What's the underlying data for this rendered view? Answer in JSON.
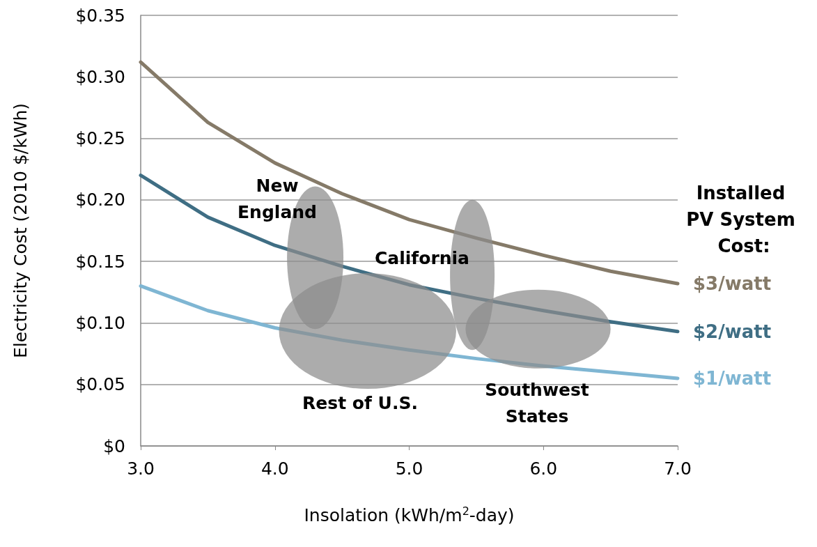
{
  "chart_data": {
    "type": "line",
    "ylabel": "Electricity Cost (2010 $/kWh)",
    "xlabel": "Insolation (kWh/m$^{2}$-day)",
    "legend_title": "Installed PV System Cost:",
    "x": [
      3.0,
      3.5,
      4.0,
      4.5,
      5.0,
      5.5,
      6.0,
      6.5,
      7.0
    ],
    "series": [
      {
        "name": "$3/watt",
        "color": "#857a68",
        "values": [
          0.312,
          0.263,
          0.23,
          0.205,
          0.184,
          0.169,
          0.155,
          0.142,
          0.132
        ]
      },
      {
        "name": "$2/watt",
        "color": "#3f6e84",
        "values": [
          0.22,
          0.186,
          0.163,
          0.146,
          0.131,
          0.12,
          0.11,
          0.101,
          0.093
        ]
      },
      {
        "name": "$1/watt",
        "color": "#7fb6d3",
        "values": [
          0.13,
          0.11,
          0.096,
          0.086,
          0.078,
          0.071,
          0.065,
          0.06,
          0.055
        ]
      }
    ],
    "xlim": [
      3,
      7
    ],
    "xticks": [
      {
        "value": 3,
        "label": "3.0"
      },
      {
        "value": 4,
        "label": "4.0"
      },
      {
        "value": 5,
        "label": "5.0"
      },
      {
        "value": 6,
        "label": "6.0"
      },
      {
        "value": 7,
        "label": "7.0"
      }
    ],
    "ylim": [
      0,
      0.35
    ],
    "yticks": [
      {
        "value": 0,
        "label": "$0"
      },
      {
        "value": 0.05,
        "label": "$0.05"
      },
      {
        "value": 0.1,
        "label": "$0.10"
      },
      {
        "value": 0.15,
        "label": "$0.15"
      },
      {
        "value": 0.2,
        "label": "$0.20"
      },
      {
        "value": 0.25,
        "label": "$0.25"
      },
      {
        "value": 0.3,
        "label": "$0.30"
      },
      {
        "value": 0.35,
        "label": "$0.35"
      }
    ],
    "annotations": [
      "New England",
      "California",
      "Rest of U.S.",
      "Southwest States"
    ],
    "grid": "y",
    "legend": false,
    "marker": "none",
    "line_style": "solid"
  }
}
